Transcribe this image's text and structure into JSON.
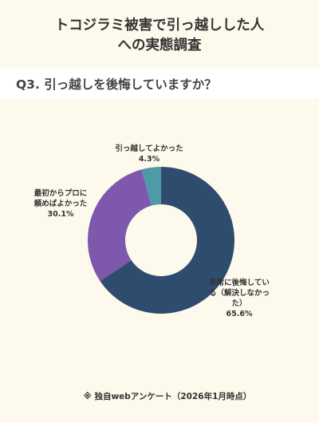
{
  "title": {
    "line1": "トコジラミ被害で引っ越しした人",
    "line2": "への実態調査"
  },
  "question": "Q3. 引っ越しを後悔していますか？",
  "chart_data": {
    "type": "pie",
    "donut": true,
    "slices": [
      {
        "label_lines": [
          "非常に後悔してい",
          "る（解決しなかっ",
          "た）"
        ],
        "value_label": "65.6%",
        "value": 65.6,
        "color": "#2E4D6E"
      },
      {
        "label_lines": [
          "最初からプロに",
          "頼めばよかった"
        ],
        "value_label": "30.1%",
        "value": 30.1,
        "color": "#7E58AC"
      },
      {
        "label_lines": [
          "引っ越してよかった"
        ],
        "value_label": "4.3%",
        "value": 4.3,
        "color": "#4E9AA7"
      }
    ]
  },
  "footnote": "※ 独自webアンケート（2026年1月時点）"
}
